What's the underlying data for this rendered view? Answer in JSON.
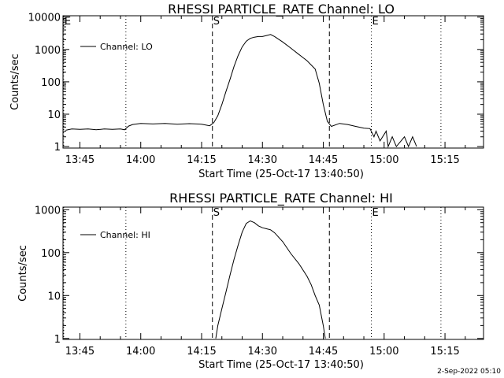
{
  "footer_timestamp": "2-Sep-2022 05:10",
  "chart_data": [
    {
      "type": "line",
      "title": "RHESSI PARTICLE_RATE Channel: LO",
      "xlabel": "Start Time (25-Oct-17 13:40:50)",
      "ylabel": "Counts/sec",
      "y_scale": "log",
      "ylim": [
        0.9,
        11000
      ],
      "y_tick_labels": [
        {
          "value": 1,
          "label": "1"
        },
        {
          "value": 10,
          "label": "10"
        },
        {
          "value": 100,
          "label": "100"
        },
        {
          "value": 1000,
          "label": "1000"
        },
        {
          "value": 10000,
          "label": "10000"
        }
      ],
      "xlim": [
        "13:40:50",
        "15:24:30"
      ],
      "x_tick_labels": [
        {
          "time": "13:45",
          "label": "13:45"
        },
        {
          "time": "14:00",
          "label": "14:00"
        },
        {
          "time": "14:15",
          "label": "14:15"
        },
        {
          "time": "14:30",
          "label": "14:30"
        },
        {
          "time": "14:45",
          "label": "14:45"
        },
        {
          "time": "15:00",
          "label": "15:00"
        },
        {
          "time": "15:15",
          "label": "15:15"
        }
      ],
      "legend": {
        "position": "top-left",
        "entries": [
          "Channel: LO"
        ]
      },
      "markers": [
        {
          "time": "13:41:00",
          "label": "E",
          "style": "dotted"
        },
        {
          "time": "13:56:20",
          "label": "",
          "style": "dotted"
        },
        {
          "time": "14:17:40",
          "label": "S",
          "style": "dashed"
        },
        {
          "time": "14:46:30",
          "label": "",
          "style": "dashed"
        },
        {
          "time": "14:56:50",
          "label": "E",
          "style": "dotted"
        },
        {
          "time": "15:14:00",
          "label": "",
          "style": "dotted"
        }
      ],
      "series": [
        {
          "name": "Channel: LO",
          "points": [
            [
              "13:41:30",
              3.2
            ],
            [
              "13:43:00",
              3.5
            ],
            [
              "13:45:00",
              3.4
            ],
            [
              "13:47:00",
              3.5
            ],
            [
              "13:49:00",
              3.3
            ],
            [
              "13:51:00",
              3.5
            ],
            [
              "13:53:00",
              3.4
            ],
            [
              "13:55:00",
              3.5
            ],
            [
              "13:56:00",
              3.3
            ],
            [
              "13:57:00",
              4.3
            ],
            [
              "13:58:00",
              4.8
            ],
            [
              "14:00:00",
              5.2
            ],
            [
              "14:03:00",
              5.0
            ],
            [
              "14:06:00",
              5.2
            ],
            [
              "14:09:00",
              4.9
            ],
            [
              "14:12:00",
              5.1
            ],
            [
              "14:15:00",
              4.9
            ],
            [
              "14:17:00",
              4.4
            ],
            [
              "14:18:00",
              5.5
            ],
            [
              "14:19:00",
              9
            ],
            [
              "14:20:00",
              20
            ],
            [
              "14:21:00",
              50
            ],
            [
              "14:22:00",
              120
            ],
            [
              "14:23:00",
              300
            ],
            [
              "14:24:00",
              650
            ],
            [
              "14:25:00",
              1200
            ],
            [
              "14:26:00",
              1800
            ],
            [
              "14:27:00",
              2200
            ],
            [
              "14:28:00",
              2400
            ],
            [
              "14:29:00",
              2500
            ],
            [
              "14:30:00",
              2500
            ],
            [
              "14:31:00",
              2700
            ],
            [
              "14:32:00",
              2900
            ],
            [
              "14:33:00",
              2500
            ],
            [
              "14:35:00",
              1700
            ],
            [
              "14:37:00",
              1100
            ],
            [
              "14:39:00",
              700
            ],
            [
              "14:41:00",
              450
            ],
            [
              "14:43:00",
              250
            ],
            [
              "14:44:00",
              90
            ],
            [
              "14:45:00",
              20
            ],
            [
              "14:46:00",
              6
            ],
            [
              "14:47:00",
              4.2
            ],
            [
              "14:49:00",
              5.2
            ],
            [
              "14:51:00",
              4.8
            ],
            [
              "14:53:00",
              4.2
            ],
            [
              "14:55:00",
              3.7
            ],
            [
              "14:56:30",
              3.6
            ],
            [
              "14:57:30",
              2
            ],
            [
              "14:58:00",
              3
            ],
            [
              "14:59:00",
              1.5
            ],
            [
              "15:00:30",
              3
            ],
            [
              "15:01:00",
              1
            ],
            [
              "15:02:00",
              2
            ],
            [
              "15:03:00",
              1
            ],
            [
              "15:05:00",
              2
            ],
            [
              "15:06:00",
              1
            ],
            [
              "15:07:00",
              2
            ],
            [
              "15:08:00",
              1
            ]
          ]
        }
      ]
    },
    {
      "type": "line",
      "title": "RHESSI PARTICLE_RATE Channel: HI",
      "xlabel": "Start Time (25-Oct-17 13:40:50)",
      "ylabel": "Counts/sec",
      "y_scale": "log",
      "ylim": [
        0.95,
        1150
      ],
      "y_tick_labels": [
        {
          "value": 1,
          "label": "1"
        },
        {
          "value": 10,
          "label": "10"
        },
        {
          "value": 100,
          "label": "100"
        },
        {
          "value": 1000,
          "label": "1000"
        }
      ],
      "xlim": [
        "13:40:50",
        "15:24:30"
      ],
      "x_tick_labels": [
        {
          "time": "13:45",
          "label": "13:45"
        },
        {
          "time": "14:00",
          "label": "14:00"
        },
        {
          "time": "14:15",
          "label": "14:15"
        },
        {
          "time": "14:30",
          "label": "14:30"
        },
        {
          "time": "14:45",
          "label": "14:45"
        },
        {
          "time": "15:00",
          "label": "15:00"
        },
        {
          "time": "15:15",
          "label": "15:15"
        }
      ],
      "legend": {
        "position": "top-left",
        "entries": [
          "Channel: HI"
        ]
      },
      "markers": [
        {
          "time": "13:41:00",
          "label": "",
          "style": "dotted"
        },
        {
          "time": "13:56:20",
          "label": "",
          "style": "dotted"
        },
        {
          "time": "14:17:40",
          "label": "S",
          "style": "dashed"
        },
        {
          "time": "14:46:30",
          "label": "",
          "style": "dashed"
        },
        {
          "time": "14:56:50",
          "label": "E",
          "style": "dotted"
        },
        {
          "time": "15:14:00",
          "label": "",
          "style": "dotted"
        }
      ],
      "series": [
        {
          "name": "Channel: HI",
          "points": [
            [
              "14:18:30",
              1
            ],
            [
              "14:19:00",
              2
            ],
            [
              "14:20:00",
              5
            ],
            [
              "14:21:00",
              12
            ],
            [
              "14:22:00",
              30
            ],
            [
              "14:23:00",
              70
            ],
            [
              "14:24:00",
              150
            ],
            [
              "14:25:00",
              300
            ],
            [
              "14:26:00",
              480
            ],
            [
              "14:27:00",
              550
            ],
            [
              "14:28:00",
              500
            ],
            [
              "14:29:00",
              420
            ],
            [
              "14:30:00",
              380
            ],
            [
              "14:31:00",
              360
            ],
            [
              "14:32:00",
              340
            ],
            [
              "14:33:00",
              290
            ],
            [
              "14:35:00",
              180
            ],
            [
              "14:37:00",
              95
            ],
            [
              "14:39:00",
              55
            ],
            [
              "14:41:00",
              28
            ],
            [
              "14:42:00",
              18
            ],
            [
              "14:43:00",
              10
            ],
            [
              "14:44:00",
              6
            ],
            [
              "14:45:00",
              2
            ],
            [
              "14:45:30",
              1
            ]
          ]
        }
      ]
    }
  ]
}
